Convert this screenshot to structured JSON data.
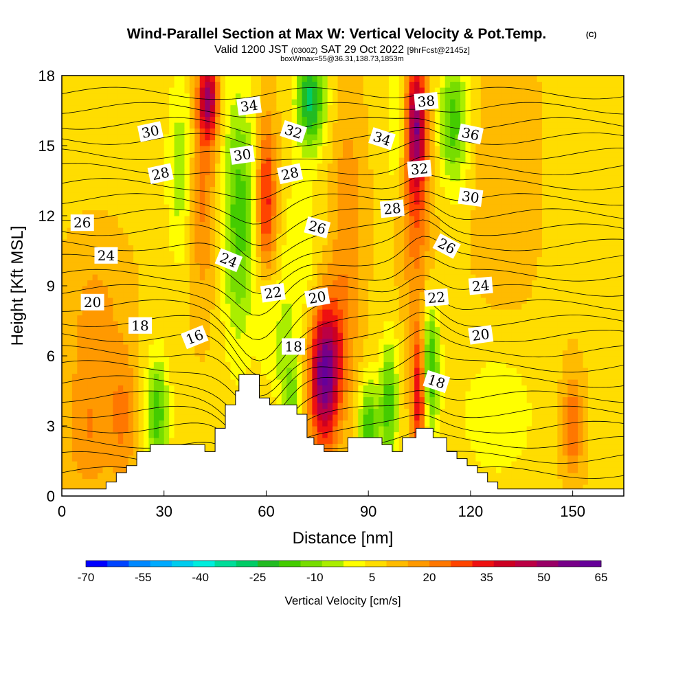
{
  "chart_data": {
    "type": "heatmap",
    "title": "Wind-Parallel Section at Max W: Vertical Velocity & Pot.Temp.",
    "copyright_mark": "(C)",
    "subtitle": {
      "valid_prefix": "Valid 1200 JST",
      "utc": "(0300Z)",
      "date": "SAT 29 Oct 2022",
      "forecast": "[9hrFcst@2145z]"
    },
    "box_note": "boxWmax=55@36.31,138.73,1853m",
    "xlabel": "Distance [nm]",
    "ylabel": "Height [Kft MSL]",
    "xlim": [
      0,
      165
    ],
    "ylim": [
      0,
      18
    ],
    "xticks": [
      0,
      30,
      60,
      90,
      120,
      150
    ],
    "yticks": [
      0,
      3,
      6,
      9,
      12,
      15,
      18
    ],
    "colorbar": {
      "label": "Vertical Velocity [cm/s]",
      "range": [
        -70,
        65
      ],
      "tick_labels": [
        "-70",
        "-55",
        "-40",
        "-25",
        "-10",
        "5",
        "20",
        "35",
        "50",
        "65"
      ],
      "colors": [
        "#0000ff",
        "#0044ff",
        "#0088ff",
        "#00aaff",
        "#00ccee",
        "#00eedd",
        "#00dd99",
        "#00cc66",
        "#22bb22",
        "#44cc00",
        "#77dd00",
        "#aaee00",
        "#ffff00",
        "#ffdd00",
        "#ffbb00",
        "#ff9900",
        "#ff7700",
        "#ff4400",
        "#ee1111",
        "#cc0022",
        "#bb0044",
        "#990066",
        "#770088",
        "#660099"
      ]
    },
    "terrain": [
      [
        0,
        0.3
      ],
      [
        13,
        0.3
      ],
      [
        13,
        0.6
      ],
      [
        16,
        0.6
      ],
      [
        16,
        1.0
      ],
      [
        19,
        1.0
      ],
      [
        19,
        1.3
      ],
      [
        22,
        1.3
      ],
      [
        22,
        1.9
      ],
      [
        26,
        1.9
      ],
      [
        26,
        2.2
      ],
      [
        42,
        2.2
      ],
      [
        42,
        1.9
      ],
      [
        45,
        1.9
      ],
      [
        45,
        2.9
      ],
      [
        48,
        2.9
      ],
      [
        48,
        3.9
      ],
      [
        51,
        3.9
      ],
      [
        51,
        4.5
      ],
      [
        52,
        4.5
      ],
      [
        52,
        5.2
      ],
      [
        58,
        5.2
      ],
      [
        58,
        4.2
      ],
      [
        61,
        4.2
      ],
      [
        61,
        3.9
      ],
      [
        69,
        3.9
      ],
      [
        69,
        3.5
      ],
      [
        72,
        3.5
      ],
      [
        72,
        2.5
      ],
      [
        74,
        2.5
      ],
      [
        74,
        2.2
      ],
      [
        77,
        2.2
      ],
      [
        77,
        1.9
      ],
      [
        84,
        1.9
      ],
      [
        84,
        2.5
      ],
      [
        94,
        2.5
      ],
      [
        94,
        2.2
      ],
      [
        97,
        2.2
      ],
      [
        97,
        1.9
      ],
      [
        100,
        1.9
      ],
      [
        100,
        2.5
      ],
      [
        104,
        2.5
      ],
      [
        104,
        2.9
      ],
      [
        109,
        2.9
      ],
      [
        109,
        2.5
      ],
      [
        113,
        2.5
      ],
      [
        113,
        1.9
      ],
      [
        116,
        1.9
      ],
      [
        116,
        1.6
      ],
      [
        119,
        1.6
      ],
      [
        119,
        1.3
      ],
      [
        122,
        1.3
      ],
      [
        122,
        1.0
      ],
      [
        125,
        1.0
      ],
      [
        125,
        0.6
      ],
      [
        128,
        0.6
      ],
      [
        128,
        0.3
      ],
      [
        165,
        0.3
      ]
    ],
    "vertical_velocity_features": [
      {
        "x": 28,
        "y": 3.5,
        "sx": 2.5,
        "sy": 1.8,
        "w": -25
      },
      {
        "x": 52,
        "y": 12,
        "sx": 3.5,
        "sy": 4,
        "w": -25
      },
      {
        "x": 60,
        "y": 9,
        "sx": 2,
        "sy": 2.5,
        "w": -35
      },
      {
        "x": 60,
        "y": 11,
        "sx": 2,
        "sy": 3,
        "w": 45
      },
      {
        "x": 77,
        "y": 5,
        "sx": 3,
        "sy": 2,
        "w": 45
      },
      {
        "x": 80,
        "y": 6.5,
        "sx": 4,
        "sy": 2,
        "w": 15
      },
      {
        "x": 41,
        "y": 13,
        "sx": 3,
        "sy": 3,
        "w": 15
      },
      {
        "x": 43,
        "y": 17,
        "sx": 2,
        "sy": 1.2,
        "w": 40
      },
      {
        "x": 35,
        "y": 14,
        "sx": 3,
        "sy": 3,
        "w": -15
      },
      {
        "x": 73,
        "y": 17,
        "sx": 3,
        "sy": 1.5,
        "w": -35
      },
      {
        "x": 70,
        "y": 10,
        "sx": 4,
        "sy": 3,
        "w": -10
      },
      {
        "x": 104,
        "y": 16,
        "sx": 2,
        "sy": 2,
        "w": 40
      },
      {
        "x": 105,
        "y": 4.5,
        "sx": 1.5,
        "sy": 2,
        "w": 35
      },
      {
        "x": 108,
        "y": 5.5,
        "sx": 2,
        "sy": 2,
        "w": -30
      },
      {
        "x": 96,
        "y": 4,
        "sx": 2,
        "sy": 2,
        "w": -25
      },
      {
        "x": 90,
        "y": 3,
        "sx": 2,
        "sy": 1.5,
        "w": -25
      },
      {
        "x": 115,
        "y": 16,
        "sx": 3,
        "sy": 2,
        "w": -25
      },
      {
        "x": 104,
        "y": 12,
        "sx": 3,
        "sy": 3,
        "w": 15
      },
      {
        "x": 98,
        "y": 16,
        "sx": 2,
        "sy": 2,
        "w": -12
      },
      {
        "x": 128,
        "y": 3.5,
        "sx": 8,
        "sy": 2,
        "w": -10
      },
      {
        "x": 150,
        "y": 3,
        "sx": 2,
        "sy": 1.5,
        "w": 18
      },
      {
        "x": 18,
        "y": 3.5,
        "sx": 3,
        "sy": 2,
        "w": 12
      },
      {
        "x": 10,
        "y": 8,
        "sx": 6,
        "sy": 2,
        "w": 8
      },
      {
        "x": 8,
        "y": 3,
        "sx": 5,
        "sy": 2,
        "w": 12
      },
      {
        "x": 130,
        "y": 14,
        "sx": 6,
        "sy": 4,
        "w": 5
      },
      {
        "x": 68,
        "y": 3.5,
        "sx": 1.5,
        "sy": 1.5,
        "w": -20
      },
      {
        "x": 65,
        "y": 6,
        "sx": 2,
        "sy": 2,
        "w": -12
      },
      {
        "x": 84,
        "y": 12,
        "sx": 3,
        "sy": 3,
        "w": 12
      }
    ],
    "theta_contour_labels": [
      {
        "text": "16",
        "x": 39,
        "y": 6.8,
        "angle": -22
      },
      {
        "text": "18",
        "x": 23,
        "y": 7.3,
        "angle": 0
      },
      {
        "text": "18",
        "x": 68,
        "y": 6.4,
        "angle": 0
      },
      {
        "text": "18",
        "x": 110,
        "y": 4.9,
        "angle": 18
      },
      {
        "text": "20",
        "x": 9,
        "y": 8.3,
        "angle": 0
      },
      {
        "text": "20",
        "x": 75,
        "y": 8.5,
        "angle": -10
      },
      {
        "text": "20",
        "x": 123,
        "y": 6.9,
        "angle": -8
      },
      {
        "text": "22",
        "x": 62,
        "y": 8.7,
        "angle": -8
      },
      {
        "text": "22",
        "x": 110,
        "y": 8.5,
        "angle": -5
      },
      {
        "text": "24",
        "x": 13,
        "y": 10.3,
        "angle": 0
      },
      {
        "text": "24",
        "x": 49,
        "y": 10.1,
        "angle": 22
      },
      {
        "text": "24",
        "x": 123,
        "y": 9.0,
        "angle": -5
      },
      {
        "text": "26",
        "x": 6,
        "y": 11.7,
        "angle": 0
      },
      {
        "text": "26",
        "x": 75,
        "y": 11.5,
        "angle": 15
      },
      {
        "text": "26",
        "x": 113,
        "y": 10.7,
        "angle": 28
      },
      {
        "text": "28",
        "x": 29,
        "y": 13.8,
        "angle": -12
      },
      {
        "text": "28",
        "x": 67,
        "y": 13.8,
        "angle": -12
      },
      {
        "text": "28",
        "x": 97,
        "y": 12.3,
        "angle": -5
      },
      {
        "text": "30",
        "x": 26,
        "y": 15.6,
        "angle": -12
      },
      {
        "text": "30",
        "x": 53,
        "y": 14.6,
        "angle": -8
      },
      {
        "text": "30",
        "x": 120,
        "y": 12.8,
        "angle": 8
      },
      {
        "text": "32",
        "x": 68,
        "y": 15.6,
        "angle": 18
      },
      {
        "text": "32",
        "x": 105,
        "y": 14.0,
        "angle": -5
      },
      {
        "text": "34",
        "x": 55,
        "y": 16.7,
        "angle": -8
      },
      {
        "text": "34",
        "x": 94,
        "y": 15.3,
        "angle": 18
      },
      {
        "text": "36",
        "x": 120,
        "y": 15.5,
        "angle": 12
      },
      {
        "text": "38",
        "x": 107,
        "y": 16.9,
        "angle": -5
      }
    ]
  }
}
